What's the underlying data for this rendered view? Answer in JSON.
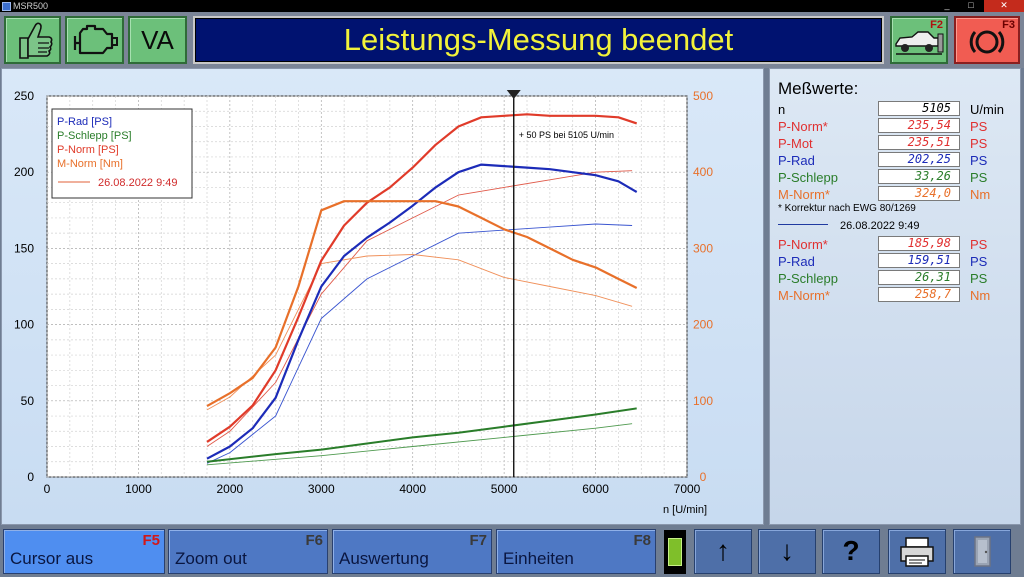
{
  "window": {
    "title": "MSR500",
    "minimize": "_",
    "maximize": "□",
    "close": "✕"
  },
  "toolbar": {
    "va_label": "VA",
    "title": "Leistungs-Messung beendet",
    "dyno_fkey": "F2",
    "brake_fkey": "F3",
    "icons": [
      "thumbs-up-icon",
      "engine-icon",
      "dyno-icon",
      "brake-disc-icon"
    ]
  },
  "chart_data": {
    "type": "line",
    "xlabel": "n [U/min]",
    "xlim": [
      0,
      7000
    ],
    "ylim_left": [
      0,
      250
    ],
    "ylim_right": [
      0,
      500
    ],
    "x_ticks": [
      "0",
      "1000",
      "2000",
      "3000",
      "4000",
      "5000",
      "6000",
      "7000"
    ],
    "y_ticks_left": [
      "0",
      "50",
      "100",
      "150",
      "200",
      "250"
    ],
    "y_ticks_right": [
      "0",
      "100",
      "200",
      "300",
      "400",
      "500"
    ],
    "grid": true,
    "legend_position": "top-left",
    "legend": [
      "P-Rad [PS]",
      "P-Schlepp [PS]",
      "P-Norm [PS]",
      "M-Norm [Nm]"
    ],
    "comparison_label": "26.08.2022 9:49",
    "cursor": {
      "x": 5105,
      "label": "+ 50 PS bei 5105 U/min"
    },
    "series": [
      {
        "name": "P-Norm [PS]",
        "axis": "left",
        "color": "#e03b2a",
        "width": 2.2,
        "x": [
          1750,
          2000,
          2250,
          2500,
          2750,
          3000,
          3250,
          3500,
          3750,
          4000,
          4250,
          4500,
          4750,
          5000,
          5250,
          5500,
          5750,
          6000,
          6250,
          6450
        ],
        "y": [
          23,
          33,
          47,
          70,
          105,
          142,
          165,
          180,
          190,
          203,
          218,
          230,
          236,
          237,
          238,
          237,
          237,
          237,
          236,
          232
        ]
      },
      {
        "name": "P-Rad [PS]",
        "axis": "left",
        "color": "#1c2bb8",
        "width": 2.2,
        "x": [
          1750,
          2000,
          2250,
          2500,
          2750,
          3000,
          3250,
          3500,
          3750,
          4000,
          4250,
          4500,
          4750,
          5000,
          5250,
          5500,
          5750,
          6000,
          6250,
          6450
        ],
        "y": [
          12,
          20,
          32,
          52,
          90,
          125,
          145,
          157,
          167,
          178,
          190,
          200,
          205,
          204,
          203,
          202,
          200,
          198,
          194,
          187
        ]
      },
      {
        "name": "P-Schlepp [PS]",
        "axis": "left",
        "color": "#2a7d2a",
        "width": 2,
        "x": [
          1750,
          2500,
          3000,
          3500,
          4000,
          4500,
          5000,
          5500,
          6000,
          6450
        ],
        "y": [
          10,
          15,
          18,
          22,
          26,
          29,
          33,
          37,
          41,
          45
        ]
      },
      {
        "name": "M-Norm [Nm]",
        "axis": "right",
        "color": "#e8702a",
        "width": 2.2,
        "x": [
          1750,
          2000,
          2250,
          2500,
          2750,
          3000,
          3250,
          3500,
          3750,
          4000,
          4250,
          4500,
          4750,
          5000,
          5250,
          5500,
          5750,
          6000,
          6250,
          6450
        ],
        "y": [
          93,
          110,
          130,
          170,
          250,
          350,
          362,
          362,
          362,
          362,
          362,
          355,
          340,
          325,
          315,
          300,
          285,
          275,
          260,
          248
        ]
      },
      {
        "name": "P-Norm (26.08.2022 9:49)",
        "axis": "left",
        "color": "#e05a4a",
        "width": 0.9,
        "x": [
          1750,
          2000,
          2500,
          3000,
          3500,
          4000,
          4500,
          5000,
          5500,
          6000,
          6400
        ],
        "y": [
          20,
          30,
          62,
          120,
          155,
          170,
          185,
          190,
          195,
          200,
          201
        ]
      },
      {
        "name": "P-Rad (26.08.2022 9:49)",
        "axis": "left",
        "color": "#3a55d0",
        "width": 0.9,
        "x": [
          1750,
          2000,
          2500,
          3000,
          3500,
          4000,
          4500,
          5000,
          5500,
          6000,
          6400
        ],
        "y": [
          9,
          16,
          40,
          104,
          130,
          145,
          160,
          162,
          164,
          166,
          165
        ]
      },
      {
        "name": "P-Schlepp (26.08.2022 9:49)",
        "axis": "left",
        "color": "#4f9a4f",
        "width": 0.9,
        "x": [
          1750,
          3000,
          4000,
          5000,
          6000,
          6400
        ],
        "y": [
          8,
          14,
          20,
          26,
          32,
          35
        ]
      },
      {
        "name": "M-Norm (26.08.2022 9:49)",
        "axis": "right",
        "color": "#f0905a",
        "width": 0.9,
        "x": [
          1750,
          2000,
          2500,
          3000,
          3500,
          4000,
          4500,
          5000,
          5500,
          6000,
          6400
        ],
        "y": [
          88,
          105,
          160,
          280,
          290,
          292,
          285,
          262,
          250,
          238,
          224
        ]
      }
    ]
  },
  "values": {
    "title": "Meßwerte:",
    "rows": [
      {
        "label": "n",
        "value": "5105",
        "unit": "U/min",
        "color": "#000000"
      },
      {
        "label": "P-Norm*",
        "value": "235,54",
        "unit": "PS",
        "color": "#e03030"
      },
      {
        "label": "P-Mot",
        "value": "235,51",
        "unit": "PS",
        "color": "#e03030"
      },
      {
        "label": "P-Rad",
        "value": "202,25",
        "unit": "PS",
        "color": "#1c2bb8"
      },
      {
        "label": "P-Schlepp",
        "value": "33,26",
        "unit": "PS",
        "color": "#2a7d2a"
      },
      {
        "label": "M-Norm*",
        "value": "324,0",
        "unit": "Nm",
        "color": "#e8702a"
      }
    ],
    "note": "* Korrektur nach EWG 80/1269",
    "compare_date": "26.08.2022 9:49",
    "compare_rows": [
      {
        "label": "P-Norm*",
        "value": "185,98",
        "unit": "PS",
        "color": "#e03030"
      },
      {
        "label": "P-Rad",
        "value": "159,51",
        "unit": "PS",
        "color": "#1c2bb8"
      },
      {
        "label": "P-Schlepp",
        "value": "26,31",
        "unit": "PS",
        "color": "#2a7d2a"
      },
      {
        "label": "M-Norm*",
        "value": "258,7",
        "unit": "Nm",
        "color": "#e8702a"
      }
    ]
  },
  "fkeys": [
    {
      "label": "Cursor aus",
      "key": "F5"
    },
    {
      "label": "Zoom out",
      "key": "F6"
    },
    {
      "label": "Auswertung",
      "key": "F7"
    },
    {
      "label": "Einheiten",
      "key": "F8"
    }
  ],
  "icon_buttons": {
    "up": "↑",
    "down": "↓",
    "help": "?",
    "print": "printer-icon",
    "exit": "door-icon"
  }
}
